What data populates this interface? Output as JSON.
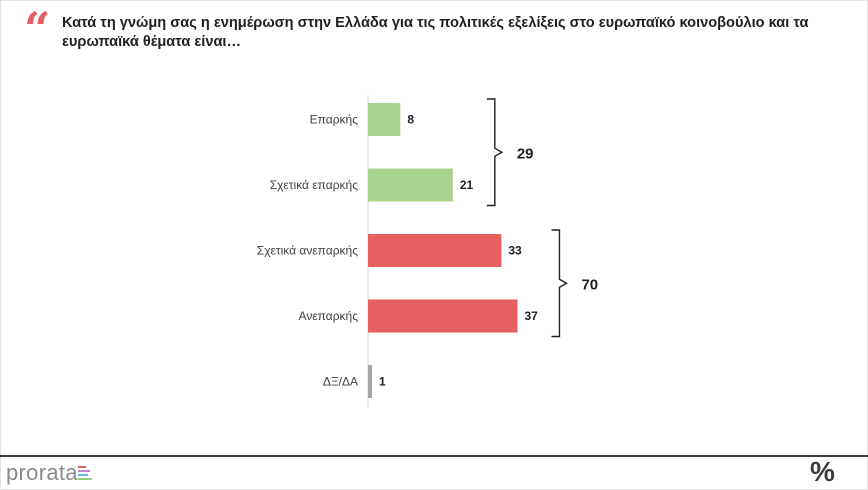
{
  "question": "Κατά τη γνώμη σας η ενημέρωση στην Ελλάδα για τις πολιτικές εξελίξεις στο ευρωπαϊκό κοινοβούλιο και τα ευρωπαϊκά θέματα είναι…",
  "quote_icon": "quote-mark-icon",
  "chart_data": {
    "type": "bar",
    "orientation": "horizontal",
    "categories": [
      "Επαρκής",
      "Σχετικά επαρκής",
      "Σχετικά ανεπαρκής",
      "Ανεπαρκής",
      "ΔΞ/ΔΑ"
    ],
    "values": [
      8,
      21,
      33,
      37,
      1
    ],
    "value_labels": [
      "8",
      "21",
      "33",
      "37",
      "1"
    ],
    "bar_colors": [
      "#a8d28d",
      "#a8d28d",
      "#e85f60",
      "#e85f60",
      "#a6a6a6"
    ],
    "xlim": [
      0,
      100
    ],
    "grid": false,
    "groups": [
      {
        "label": "29",
        "from": 0,
        "to": 1
      },
      {
        "label": "70",
        "from": 2,
        "to": 3
      }
    ]
  },
  "footer": {
    "logo_text": "prorata",
    "logo_bar_colors": [
      "#e0615f",
      "#c77dc9",
      "#6fb7e3",
      "#8ccf7e"
    ],
    "percent_symbol": "%"
  }
}
